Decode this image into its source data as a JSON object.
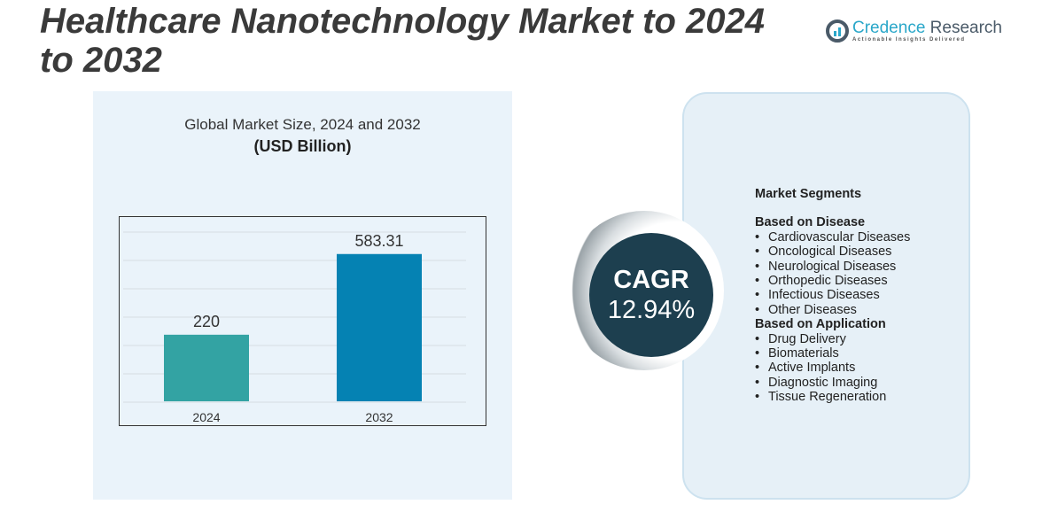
{
  "title": "Healthcare Nanotechnology Market to 2024 to 2032",
  "logo": {
    "name_a": "Credence",
    "name_b": " Research",
    "tagline": "Actionable Insights Delivered"
  },
  "chart_data": {
    "type": "bar",
    "title": "Global Market Size, 2024 and 2032",
    "subtitle": "(USD Billion)",
    "categories": [
      "2024",
      "2032"
    ],
    "values": [
      220,
      583.31
    ],
    "data_labels": [
      "220",
      "583.31"
    ],
    "colors": [
      "#33a3a3",
      "#0582b3"
    ],
    "grid": true
  },
  "cagr": {
    "label": "CAGR",
    "value": "12.94%"
  },
  "segments": {
    "heading": "Market Segments",
    "groups": [
      {
        "title": "Based on Disease",
        "items": [
          "Cardiovascular Diseases",
          "Oncological Diseases",
          "Neurological Diseases",
          "Orthopedic Diseases",
          "Infectious Diseases",
          "Other Diseases"
        ]
      },
      {
        "title": "Based on Application",
        "items": [
          "Drug Delivery",
          "Biomaterials",
          "Active Implants",
          "Diagnostic Imaging",
          "Tissue Regeneration"
        ]
      }
    ]
  }
}
